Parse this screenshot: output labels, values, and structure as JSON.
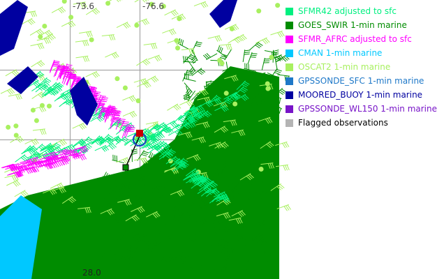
{
  "map": {
    "lon_labels": [
      "-73.6",
      "-76.6"
    ],
    "lat_label": "28.0"
  },
  "legend": [
    {
      "label": "SFMR42 adjusted to sfc",
      "color": "#00F080"
    },
    {
      "label": "GOES_SWIR 1-min marine",
      "color": "#008C00"
    },
    {
      "label": "SFMR_AFRC adjusted to sfc",
      "color": "#FF00FF"
    },
    {
      "label": "CMAN 1-min marine",
      "color": "#00C8FF"
    },
    {
      "label": "OSCAT2 1-min marine",
      "color": "#A8F060"
    },
    {
      "label": "GPSSONDE_SFC 1-min marine",
      "color": "#1E78C8"
    },
    {
      "label": "MOORED_BUOY 1-min marine",
      "color": "#0000A0"
    },
    {
      "label": "GPSSONDE_WL150 1-min marine",
      "color": "#7814C8"
    },
    {
      "label": "Flagged observations",
      "color": "#B4B4B4",
      "text_color": "#000000"
    }
  ]
}
